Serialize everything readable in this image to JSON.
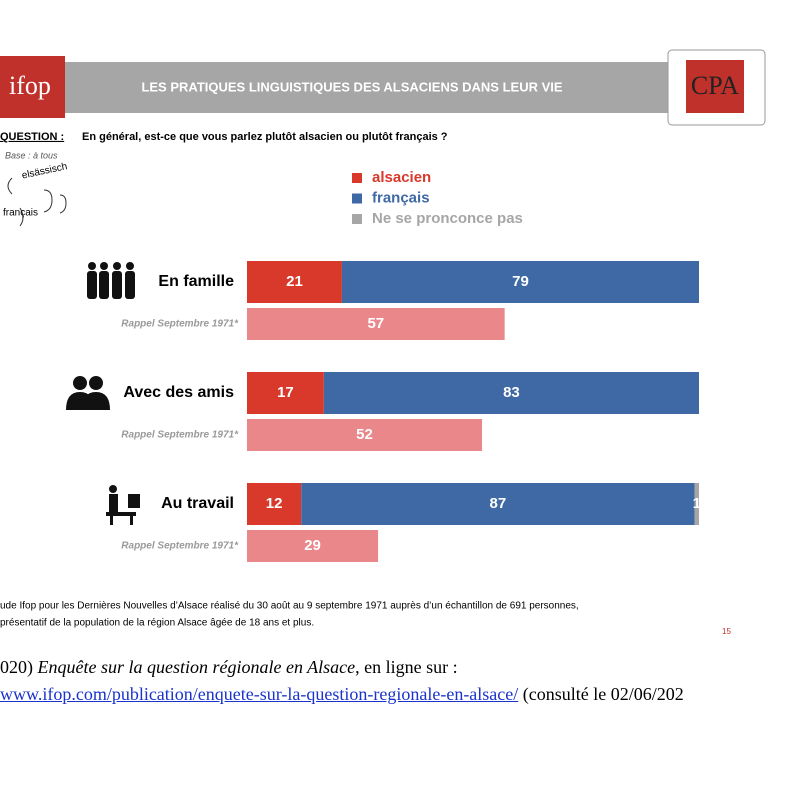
{
  "chart_data": {
    "type": "stacked-bar",
    "header": {
      "title": "LES PRATIQUES LINGUISTIQUES DES ALSACIENS DANS LEUR VIE",
      "logo_left": "ifop",
      "logo_right": "CPA"
    },
    "question_label": "QUESTION :",
    "question": "En général, est-ce que vous parlez plutôt alsacien ou plutôt français ?",
    "base": "Base : à tous",
    "icon_words": [
      "elsässisch",
      "français"
    ],
    "categories": [
      "En famille",
      "Avec des amis",
      "Au travail"
    ],
    "xlim": [
      0,
      100
    ],
    "series": [
      {
        "name": "alsacien",
        "color": "#d9392b",
        "values": [
          21,
          17,
          12
        ]
      },
      {
        "name": "français",
        "color": "#3f69a5",
        "values": [
          79,
          83,
          87
        ]
      },
      {
        "name": "Ne se pronconce pas",
        "color": "#a6a6a6",
        "values": [
          null,
          null,
          1
        ]
      }
    ],
    "recall": {
      "label": "Rappel Septembre 1971*",
      "color": "#e9878b",
      "values": [
        57,
        52,
        29
      ]
    },
    "footnote": [
      "ude Ifop pour les Dernières Nouvelles d’Alsace réalisé du 30 août au 9 septembre 1971 auprès d’un échantillon de 691 personnes,",
      "présentatif de la population de la région Alsace âgée de 18 ans et plus."
    ],
    "page_number": "15",
    "citation": {
      "prefix": "020) ",
      "title": "Enquête sur la question régionale en Alsace",
      "middle": ", en ligne sur :",
      "url": "www.ifop.com/publication/enquete-sur-la-question-regionale-en-alsace/",
      "suffix": " (consulté le 02/06/202"
    }
  }
}
